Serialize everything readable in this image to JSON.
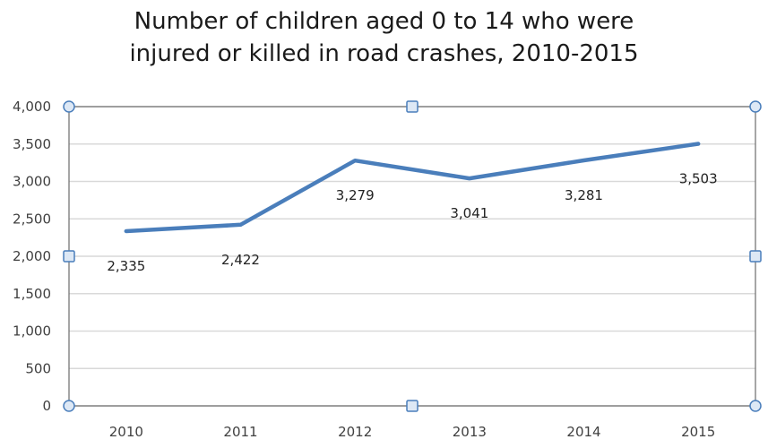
{
  "chart_data": {
    "type": "line",
    "title": [
      "Number of children aged 0 to 14 who were",
      "injured or killed in road crashes, 2010-2015"
    ],
    "xlabel": "",
    "ylabel": "",
    "categories": [
      "2010",
      "2011",
      "2012",
      "2013",
      "2014",
      "2015"
    ],
    "values": [
      2335,
      2422,
      3279,
      3041,
      3281,
      3503
    ],
    "data_labels": [
      "2,335",
      "2,422",
      "3,279",
      "3,041",
      "3,281",
      "3,503"
    ],
    "ylim": [
      0,
      4000
    ],
    "yticks": [
      0,
      500,
      1000,
      1500,
      2000,
      2500,
      3000,
      3500,
      4000
    ],
    "ytick_labels": [
      "0",
      "500",
      "1,000",
      "1,500",
      "2,000",
      "2,500",
      "3,000",
      "3,500",
      "4,000"
    ],
    "grid": "horizontal",
    "legend": "none",
    "line_color": "#4a7ebb",
    "grid_color": "#d9d9d9",
    "selection_color": "#4a7ebb"
  }
}
